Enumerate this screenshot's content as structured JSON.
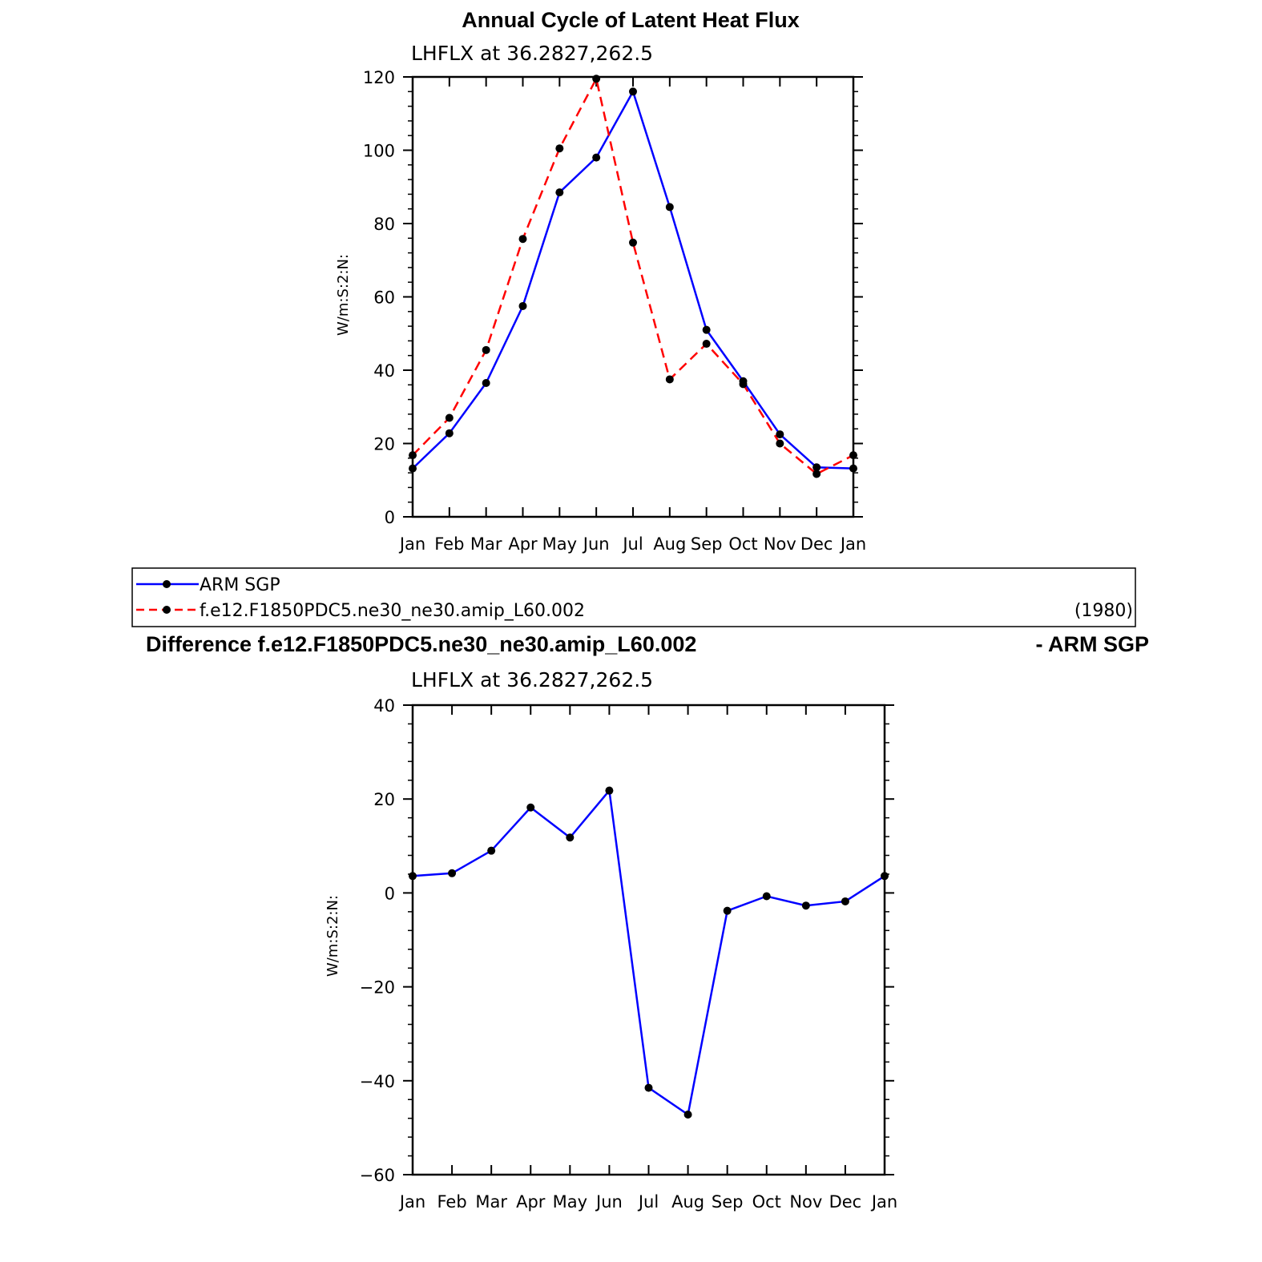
{
  "chart_data": [
    {
      "type": "line",
      "title": "Annual Cycle of Latent Heat Flux",
      "subtitle": "LHFLX at 36.2827,262.5",
      "ylabel": "W/m:S:2:N:",
      "xlabel": "",
      "categories": [
        "Jan",
        "Feb",
        "Mar",
        "Apr",
        "May",
        "Jun",
        "Jul",
        "Aug",
        "Sep",
        "Oct",
        "Nov",
        "Dec",
        "Jan"
      ],
      "ylim": [
        0,
        120
      ],
      "yticks": [
        "0",
        "20",
        "40",
        "60",
        "80",
        "100",
        "120"
      ],
      "grid": false,
      "legend": "below",
      "series": [
        {
          "name": "ARM SGP",
          "color": "#0000ff",
          "dash": "solid",
          "values": [
            13.2,
            22.8,
            36.5,
            57.5,
            88.5,
            98.0,
            116.0,
            84.5,
            51.0,
            37.0,
            22.5,
            13.5,
            13.2
          ]
        },
        {
          "name": "f.e12.F1850PDC5.ne30_ne30.amip_L60.002",
          "color": "#ff0000",
          "dash": "dashed",
          "values": [
            16.8,
            27.0,
            45.5,
            75.8,
            100.5,
            119.5,
            74.8,
            37.5,
            47.2,
            36.2,
            20.0,
            11.7,
            16.8
          ]
        }
      ],
      "legend_note": "(1980)"
    },
    {
      "type": "line",
      "title": "Difference f.e12.F1850PDC5.ne30_ne30.amip_L60.002",
      "title_right": "- ARM SGP",
      "subtitle": "LHFLX at 36.2827,262.5",
      "ylabel": "W/m:S:2:N:",
      "xlabel": "",
      "categories": [
        "Jan",
        "Feb",
        "Mar",
        "Apr",
        "May",
        "Jun",
        "Jul",
        "Aug",
        "Sep",
        "Oct",
        "Nov",
        "Dec",
        "Jan"
      ],
      "ylim": [
        -60,
        40
      ],
      "yticks": [
        "−60",
        "−40",
        "−20",
        "0",
        "20",
        "40"
      ],
      "grid": false,
      "series": [
        {
          "color": "#0000ff",
          "dash": "solid",
          "values": [
            3.6,
            4.2,
            9.0,
            18.2,
            11.8,
            21.8,
            -41.5,
            -47.2,
            -3.8,
            -0.7,
            -2.7,
            -1.8,
            3.6
          ]
        }
      ]
    }
  ]
}
